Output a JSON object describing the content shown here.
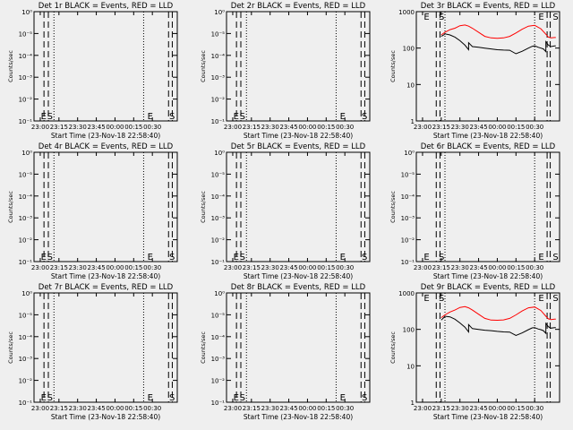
{
  "chart_data": [
    {
      "type": "line",
      "title": "Det 1r BLACK = Events, RED = LLD",
      "xlabel": "Start Time (23-Nov-18 22:58:40)",
      "ylabel": "Counts/sec",
      "x_ticks": [
        "23:00",
        "23:15",
        "23:30",
        "23:45",
        "00:00",
        "00:15",
        "00:30"
      ],
      "y_ticks": [
        "10⁻¹",
        "10⁻²",
        "10⁻³",
        "10⁻⁴",
        "10⁻⁵",
        "10⁰"
      ],
      "ylim": [
        1,
        0.0001
      ],
      "yscale": "log",
      "dashed_lines": [
        3,
        6.5,
        103,
        106
      ],
      "dotted_lines": [
        11,
        83
      ],
      "markers": [
        {
          "t": 0.5,
          "text": "E"
        },
        {
          "t": 5.5,
          "text": "S"
        },
        {
          "t": 86,
          "text": "E"
        },
        {
          "t": 103.5,
          "text": "S"
        }
      ],
      "series": []
    },
    {
      "type": "line",
      "title": "Det 2r BLACK = Events, RED = LLD",
      "xlabel": "Start Time (23-Nov-18 22:58:40)",
      "ylabel": "Counts/sec",
      "x_ticks": [
        "23:00",
        "23:15",
        "23:30",
        "23:45",
        "00:00",
        "00:15",
        "00:30"
      ],
      "y_ticks": [
        "10⁻¹",
        "10⁻²",
        "10⁻³",
        "10⁻⁴",
        "10⁻⁵",
        "10⁰"
      ],
      "ylim": [
        1,
        0.0001
      ],
      "yscale": "log",
      "dashed_lines": [
        3,
        6.5,
        103,
        106
      ],
      "dotted_lines": [
        11,
        83
      ],
      "markers": [
        {
          "t": 0.5,
          "text": "E"
        },
        {
          "t": 5.5,
          "text": "S"
        },
        {
          "t": 86,
          "text": "E"
        },
        {
          "t": 103.5,
          "text": "S"
        }
      ],
      "series": []
    },
    {
      "type": "line",
      "title": "Det 3r BLACK = Events, RED = LLD",
      "xlabel": "Start Time (23-Nov-18 22:58:40)",
      "ylabel": "Counts/sec",
      "x_ticks": [
        "23:00",
        "23:15",
        "23:30",
        "23:45",
        "00:00",
        "00:15",
        "00:30"
      ],
      "y_ticks": [
        "1",
        "10",
        "100",
        "1000"
      ],
      "ylim": [
        1,
        1000
      ],
      "yscale": "log",
      "dashed_lines": [
        11,
        14,
        100,
        102.5
      ],
      "dotted_lines": [
        18,
        90
      ],
      "markers": [
        {
          "t": 1,
          "text": "E"
        },
        {
          "t": 13,
          "text": "S"
        },
        {
          "t": 93,
          "text": "E"
        },
        {
          "t": 104.5,
          "text": "S"
        }
      ],
      "series": [
        {
          "name": "BLACK",
          "color": "#000000",
          "x": [
            15,
            17,
            18,
            22,
            26,
            30,
            34,
            37,
            37,
            40,
            45,
            50,
            55,
            60,
            65,
            70,
            75,
            80,
            85,
            88,
            90,
            93,
            95,
            97,
            99,
            99,
            101,
            103,
            106,
            107
          ],
          "y": [
            210,
            230,
            245,
            230,
            200,
            160,
            120,
            90,
            140,
            110,
            105,
            100,
            95,
            90,
            88,
            87,
            70,
            82,
            100,
            112,
            115,
            105,
            100,
            95,
            80,
            150,
            120,
            110,
            115,
            115
          ]
        },
        {
          "name": "RED",
          "color": "#ff0000",
          "x": [
            15,
            18,
            22,
            26,
            30,
            34,
            37,
            40,
            45,
            50,
            55,
            60,
            65,
            70,
            75,
            80,
            85,
            90,
            95,
            99,
            101,
            103,
            106,
            107
          ],
          "y": [
            230,
            270,
            320,
            350,
            410,
            430,
            400,
            350,
            270,
            210,
            190,
            185,
            190,
            210,
            260,
            330,
            400,
            420,
            340,
            240,
            200,
            190,
            195,
            195
          ]
        }
      ]
    },
    {
      "type": "line",
      "title": "Det 4r BLACK = Events, RED = LLD",
      "xlabel": "Start Time (23-Nov-18 22:58:40)",
      "ylabel": "Counts/sec",
      "x_ticks": [
        "23:00",
        "23:15",
        "23:30",
        "23:45",
        "00:00",
        "00:15",
        "00:30"
      ],
      "y_ticks": [
        "10⁻¹",
        "10⁻²",
        "10⁻³",
        "10⁻⁴",
        "10⁻⁵",
        "10⁰"
      ],
      "ylim": [
        1,
        0.0001
      ],
      "yscale": "log",
      "dashed_lines": [
        3,
        6.5,
        103,
        106
      ],
      "dotted_lines": [
        11,
        83
      ],
      "markers": [
        {
          "t": 0.5,
          "text": "E"
        },
        {
          "t": 5.5,
          "text": "S"
        },
        {
          "t": 86,
          "text": "E"
        },
        {
          "t": 103.5,
          "text": "S"
        }
      ],
      "series": []
    },
    {
      "type": "line",
      "title": "Det 5r BLACK = Events, RED = LLD",
      "xlabel": "Start Time (23-Nov-18 22:58:40)",
      "ylabel": "Counts/sec",
      "x_ticks": [
        "23:00",
        "23:15",
        "23:30",
        "23:45",
        "00:00",
        "00:15",
        "00:30"
      ],
      "y_ticks": [
        "10⁻¹",
        "10⁻²",
        "10⁻³",
        "10⁻⁴",
        "10⁻⁵",
        "10⁰"
      ],
      "ylim": [
        1,
        0.0001
      ],
      "yscale": "log",
      "dashed_lines": [
        3,
        6.5,
        103,
        106
      ],
      "dotted_lines": [
        11,
        83
      ],
      "markers": [
        {
          "t": 0.5,
          "text": "E"
        },
        {
          "t": 5.5,
          "text": "S"
        },
        {
          "t": 86,
          "text": "E"
        },
        {
          "t": 103.5,
          "text": "S"
        }
      ],
      "series": []
    },
    {
      "type": "line",
      "title": "Det 6r BLACK = Events, RED = LLD",
      "xlabel": "Start Time (23-Nov-18 22:58:40)",
      "ylabel": "Counts/sec",
      "x_ticks": [
        "23:00",
        "23:15",
        "23:30",
        "23:45",
        "00:00",
        "00:15",
        "00:30"
      ],
      "y_ticks": [
        "10⁻¹",
        "10⁻²",
        "10⁻³",
        "10⁻⁴",
        "10⁻⁵",
        "10⁰"
      ],
      "ylim": [
        1,
        0.0001
      ],
      "yscale": "log",
      "dashed_lines": [
        11,
        14,
        100,
        102.5
      ],
      "dotted_lines": [
        18,
        90
      ],
      "markers": [
        {
          "t": 1,
          "text": "E"
        },
        {
          "t": 13,
          "text": "S"
        },
        {
          "t": 93,
          "text": "E"
        },
        {
          "t": 104.5,
          "text": "S"
        }
      ],
      "series": []
    },
    {
      "type": "line",
      "title": "Det 7r BLACK = Events, RED = LLD",
      "xlabel": "Start Time (23-Nov-18 22:58:40)",
      "ylabel": "Counts/sec",
      "x_ticks": [
        "23:00",
        "23:15",
        "23:30",
        "23:45",
        "00:00",
        "00:15",
        "00:30"
      ],
      "y_ticks": [
        "10⁻¹",
        "10⁻²",
        "10⁻³",
        "10⁻⁴",
        "10⁻⁵",
        "10⁰"
      ],
      "ylim": [
        1,
        0.0001
      ],
      "yscale": "log",
      "dashed_lines": [
        3,
        6.5,
        103,
        106
      ],
      "dotted_lines": [
        11,
        83
      ],
      "markers": [
        {
          "t": 0.5,
          "text": "E"
        },
        {
          "t": 5.5,
          "text": "S"
        },
        {
          "t": 86,
          "text": "E"
        },
        {
          "t": 103.5,
          "text": "S"
        }
      ],
      "series": []
    },
    {
      "type": "line",
      "title": "Det 8r BLACK = Events, RED = LLD",
      "xlabel": "Start Time (23-Nov-18 22:58:40)",
      "ylabel": "Counts/sec",
      "x_ticks": [
        "23:00",
        "23:15",
        "23:30",
        "23:45",
        "00:00",
        "00:15",
        "00:30"
      ],
      "y_ticks": [
        "10⁻¹",
        "10⁻²",
        "10⁻³",
        "10⁻⁴",
        "10⁻⁵",
        "10⁰"
      ],
      "ylim": [
        1,
        0.0001
      ],
      "yscale": "log",
      "dashed_lines": [
        3,
        6.5,
        103,
        106
      ],
      "dotted_lines": [
        11,
        83
      ],
      "markers": [
        {
          "t": 0.5,
          "text": "E"
        },
        {
          "t": 5.5,
          "text": "S"
        },
        {
          "t": 86,
          "text": "E"
        },
        {
          "t": 103.5,
          "text": "S"
        }
      ],
      "series": []
    },
    {
      "type": "line",
      "title": "Det 9r BLACK = Events, RED = LLD",
      "xlabel": "Start Time (23-Nov-18 22:58:40)",
      "ylabel": "Counts/sec",
      "x_ticks": [
        "23:00",
        "23:15",
        "23:30",
        "23:45",
        "00:00",
        "00:15",
        "00:30"
      ],
      "y_ticks": [
        "1",
        "10",
        "100",
        "1000"
      ],
      "ylim": [
        1,
        1000
      ],
      "yscale": "log",
      "dashed_lines": [
        11,
        14,
        100,
        102.5
      ],
      "dotted_lines": [
        18,
        90
      ],
      "markers": [
        {
          "t": 1,
          "text": "E"
        },
        {
          "t": 13,
          "text": "S"
        },
        {
          "t": 93,
          "text": "E"
        },
        {
          "t": 104.5,
          "text": "S"
        }
      ],
      "series": [
        {
          "name": "BLACK",
          "color": "#000000",
          "x": [
            15,
            17,
            18,
            22,
            26,
            30,
            34,
            37,
            37,
            40,
            45,
            50,
            55,
            60,
            65,
            70,
            75,
            80,
            85,
            88,
            90,
            93,
            95,
            97,
            99,
            99,
            101,
            103,
            106,
            107
          ],
          "y": [
            180,
            210,
            230,
            220,
            190,
            150,
            115,
            85,
            135,
            105,
            100,
            95,
            92,
            88,
            85,
            84,
            68,
            80,
            98,
            110,
            112,
            102,
            98,
            92,
            78,
            145,
            118,
            108,
            112,
            112
          ]
        },
        {
          "name": "RED",
          "color": "#ff0000",
          "x": [
            15,
            18,
            22,
            26,
            30,
            34,
            37,
            40,
            45,
            50,
            55,
            60,
            65,
            70,
            75,
            80,
            85,
            90,
            95,
            99,
            101,
            103,
            106,
            107
          ],
          "y": [
            210,
            250,
            300,
            340,
            400,
            420,
            390,
            340,
            260,
            200,
            180,
            178,
            182,
            200,
            250,
            320,
            390,
            410,
            330,
            230,
            195,
            185,
            190,
            190
          ]
        }
      ]
    }
  ]
}
